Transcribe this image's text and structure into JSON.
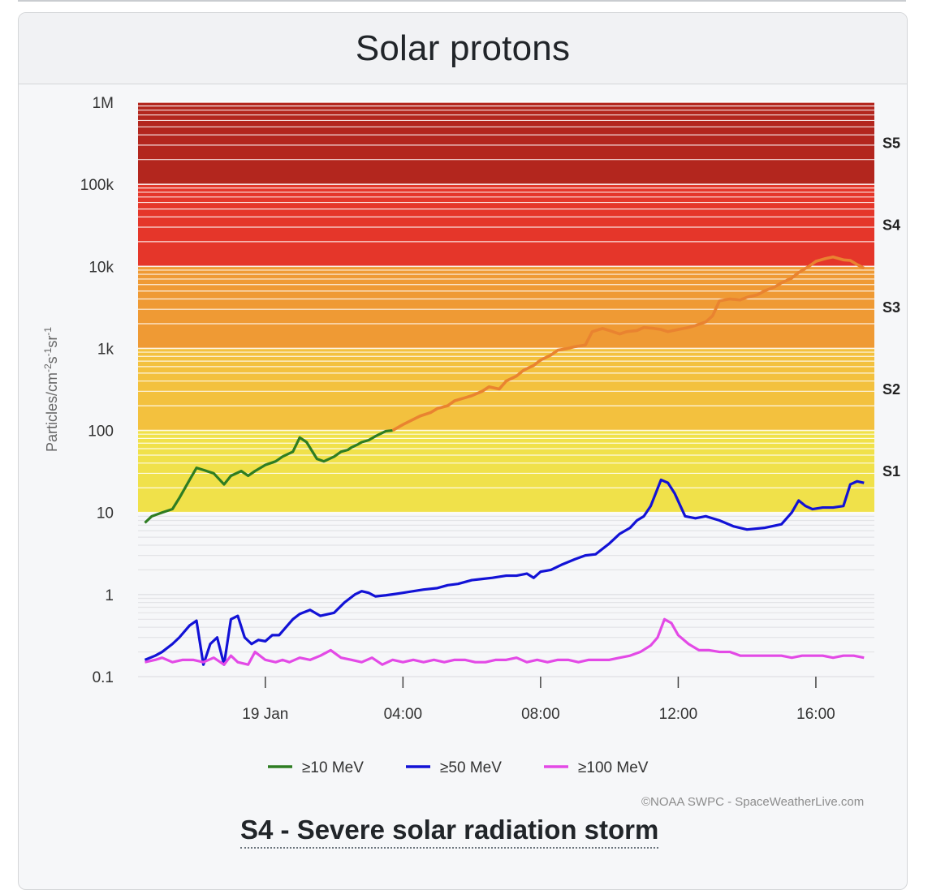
{
  "card": {
    "title": "Solar protons"
  },
  "chart_data": {
    "type": "line",
    "title": "Solar protons",
    "ylabel_parts": [
      "Particles/cm",
      "-2",
      "s",
      "-1",
      "sr",
      "-1"
    ],
    "yscale": "log",
    "ylim": [
      0.1,
      1000000
    ],
    "y_ticks": [
      {
        "value": 1000000,
        "label": "1M"
      },
      {
        "value": 100000,
        "label": "100k"
      },
      {
        "value": 10000,
        "label": "10k"
      },
      {
        "value": 1000,
        "label": "1k"
      },
      {
        "value": 100,
        "label": "100"
      },
      {
        "value": 10,
        "label": "10"
      },
      {
        "value": 1,
        "label": "1"
      },
      {
        "value": 0.1,
        "label": "0.1"
      }
    ],
    "x_unit": "hours since 19 Jan 00:00",
    "xlim": [
      -3.7,
      17.7
    ],
    "x_ticks": [
      {
        "value": 0,
        "label": "19 Jan"
      },
      {
        "value": 4,
        "label": "04:00"
      },
      {
        "value": 8,
        "label": "08:00"
      },
      {
        "value": 12,
        "label": "12:00"
      },
      {
        "value": 16,
        "label": "16:00"
      }
    ],
    "bands": [
      {
        "label": "S1",
        "from": 10,
        "to": 100,
        "color": "#f0e14a"
      },
      {
        "label": "S2",
        "from": 100,
        "to": 1000,
        "color": "#f3c13e"
      },
      {
        "label": "S3",
        "from": 1000,
        "to": 10000,
        "color": "#ef9a34"
      },
      {
        "label": "S4",
        "from": 10000,
        "to": 100000,
        "color": "#e5362a"
      },
      {
        "label": "S5",
        "from": 100000,
        "to": 1000000,
        "color": "#b3261e"
      }
    ],
    "series": [
      {
        "name": "≥10 MeV",
        "color": "#2e7d22",
        "x": [
          -3.5,
          -3.3,
          -3.0,
          -2.7,
          -2.5,
          -2.2,
          -2.0,
          -1.8,
          -1.5,
          -1.2,
          -1.0,
          -0.7,
          -0.5,
          -0.3,
          0,
          0.3,
          0.5,
          0.8,
          1.0,
          1.2,
          1.5,
          1.7,
          2.0,
          2.2,
          2.4,
          2.5,
          2.7,
          2.8,
          3.0,
          3.2,
          3.5,
          3.7,
          4.0,
          4.2,
          4.5,
          4.8,
          5.0,
          5.3,
          5.5,
          5.8,
          6.0,
          6.3,
          6.5,
          6.8,
          7.0,
          7.3,
          7.5,
          7.8,
          8.0,
          8.3,
          8.5,
          8.8,
          9.0,
          9.3,
          9.5,
          9.8,
          10.0,
          10.3,
          10.5,
          10.8,
          11.0,
          11.3,
          11.5,
          11.7,
          12.0,
          12.3,
          12.5,
          12.8,
          13.0,
          13.2,
          13.5,
          13.8,
          14.0,
          14.3,
          14.5,
          14.8,
          15.0,
          15.3,
          15.5,
          15.8,
          16.0,
          16.3,
          16.5,
          16.8,
          17.0,
          17.2,
          17.4
        ],
        "values": [
          7.5,
          9,
          10,
          11,
          15,
          25,
          35,
          33,
          30,
          22,
          28,
          32,
          28,
          32,
          38,
          42,
          48,
          55,
          82,
          72,
          45,
          42,
          48,
          55,
          58,
          62,
          68,
          72,
          76,
          85,
          98,
          100,
          118,
          130,
          150,
          165,
          185,
          200,
          230,
          250,
          265,
          300,
          340,
          320,
          400,
          460,
          540,
          620,
          720,
          830,
          950,
          1000,
          1050,
          1100,
          1600,
          1750,
          1650,
          1500,
          1600,
          1650,
          1800,
          1750,
          1700,
          1600,
          1700,
          1800,
          1900,
          2100,
          2500,
          3800,
          4000,
          3900,
          4200,
          4500,
          5000,
          5600,
          6300,
          7200,
          8400,
          10000,
          11500,
          12500,
          13000,
          12000,
          11800,
          10500,
          9500
        ]
      },
      {
        "name": "≥50 MeV",
        "color": "#1212d6",
        "x": [
          -3.5,
          -3.2,
          -3.0,
          -2.7,
          -2.5,
          -2.2,
          -2.0,
          -1.8,
          -1.6,
          -1.4,
          -1.2,
          -1.0,
          -0.8,
          -0.6,
          -0.4,
          -0.2,
          0,
          0.2,
          0.4,
          0.6,
          0.8,
          1.0,
          1.3,
          1.6,
          2.0,
          2.3,
          2.6,
          2.8,
          3.0,
          3.2,
          3.5,
          3.8,
          4.0,
          4.3,
          4.6,
          5.0,
          5.3,
          5.6,
          6.0,
          6.3,
          6.6,
          7.0,
          7.3,
          7.6,
          7.8,
          8.0,
          8.3,
          8.6,
          9.0,
          9.3,
          9.6,
          10.0,
          10.3,
          10.6,
          10.8,
          11.0,
          11.2,
          11.5,
          11.7,
          11.9,
          12.2,
          12.5,
          12.8,
          13.2,
          13.6,
          14.0,
          14.5,
          15.0,
          15.3,
          15.5,
          15.7,
          15.9,
          16.2,
          16.5,
          16.8,
          17.0,
          17.2,
          17.4
        ],
        "values": [
          0.16,
          0.18,
          0.2,
          0.25,
          0.3,
          0.42,
          0.48,
          0.14,
          0.25,
          0.3,
          0.14,
          0.5,
          0.55,
          0.3,
          0.25,
          0.28,
          0.27,
          0.32,
          0.32,
          0.4,
          0.5,
          0.58,
          0.65,
          0.55,
          0.6,
          0.8,
          1.0,
          1.1,
          1.05,
          0.95,
          0.98,
          1.02,
          1.05,
          1.1,
          1.15,
          1.2,
          1.3,
          1.35,
          1.5,
          1.55,
          1.6,
          1.7,
          1.7,
          1.8,
          1.6,
          1.9,
          2.0,
          2.3,
          2.7,
          3.0,
          3.1,
          4.2,
          5.5,
          6.5,
          8,
          9,
          12,
          25,
          23,
          17,
          9,
          8.5,
          9,
          8,
          6.8,
          6.2,
          6.5,
          7.2,
          10,
          14,
          12,
          11,
          11.5,
          11.5,
          12,
          22,
          24,
          23
        ]
      },
      {
        "name": "≥100 MeV",
        "color": "#e34ae6",
        "x": [
          -3.5,
          -3.2,
          -3.0,
          -2.7,
          -2.4,
          -2.1,
          -1.8,
          -1.5,
          -1.2,
          -1.0,
          -0.8,
          -0.5,
          -0.3,
          0,
          0.3,
          0.5,
          0.7,
          1.0,
          1.3,
          1.6,
          1.9,
          2.2,
          2.5,
          2.8,
          3.1,
          3.4,
          3.7,
          4.0,
          4.3,
          4.6,
          4.9,
          5.2,
          5.5,
          5.8,
          6.1,
          6.4,
          6.7,
          7.0,
          7.3,
          7.6,
          7.9,
          8.2,
          8.5,
          8.8,
          9.1,
          9.4,
          9.7,
          10.0,
          10.3,
          10.6,
          10.9,
          11.2,
          11.4,
          11.6,
          11.8,
          12.0,
          12.3,
          12.6,
          12.9,
          13.2,
          13.5,
          13.8,
          14.1,
          14.4,
          14.7,
          15.0,
          15.3,
          15.6,
          15.9,
          16.2,
          16.5,
          16.8,
          17.1,
          17.4
        ],
        "values": [
          0.15,
          0.16,
          0.17,
          0.15,
          0.16,
          0.16,
          0.15,
          0.17,
          0.14,
          0.18,
          0.15,
          0.14,
          0.2,
          0.16,
          0.15,
          0.16,
          0.15,
          0.17,
          0.16,
          0.18,
          0.21,
          0.17,
          0.16,
          0.15,
          0.17,
          0.14,
          0.16,
          0.15,
          0.16,
          0.15,
          0.16,
          0.15,
          0.16,
          0.16,
          0.15,
          0.15,
          0.16,
          0.16,
          0.17,
          0.15,
          0.16,
          0.15,
          0.16,
          0.16,
          0.15,
          0.16,
          0.16,
          0.16,
          0.17,
          0.18,
          0.2,
          0.24,
          0.3,
          0.5,
          0.45,
          0.32,
          0.25,
          0.21,
          0.21,
          0.2,
          0.2,
          0.18,
          0.18,
          0.18,
          0.18,
          0.18,
          0.17,
          0.18,
          0.18,
          0.18,
          0.17,
          0.18,
          0.18,
          0.17
        ]
      }
    ],
    "series_note": "≥10 MeV line is drawn in the band color (orange) while it lies inside the S2/S3 bands"
  },
  "footer": {
    "credit": "©NOAA SWPC - SpaceWeatherLive.com",
    "storm_title": "S4 - Severe solar radiation storm"
  }
}
